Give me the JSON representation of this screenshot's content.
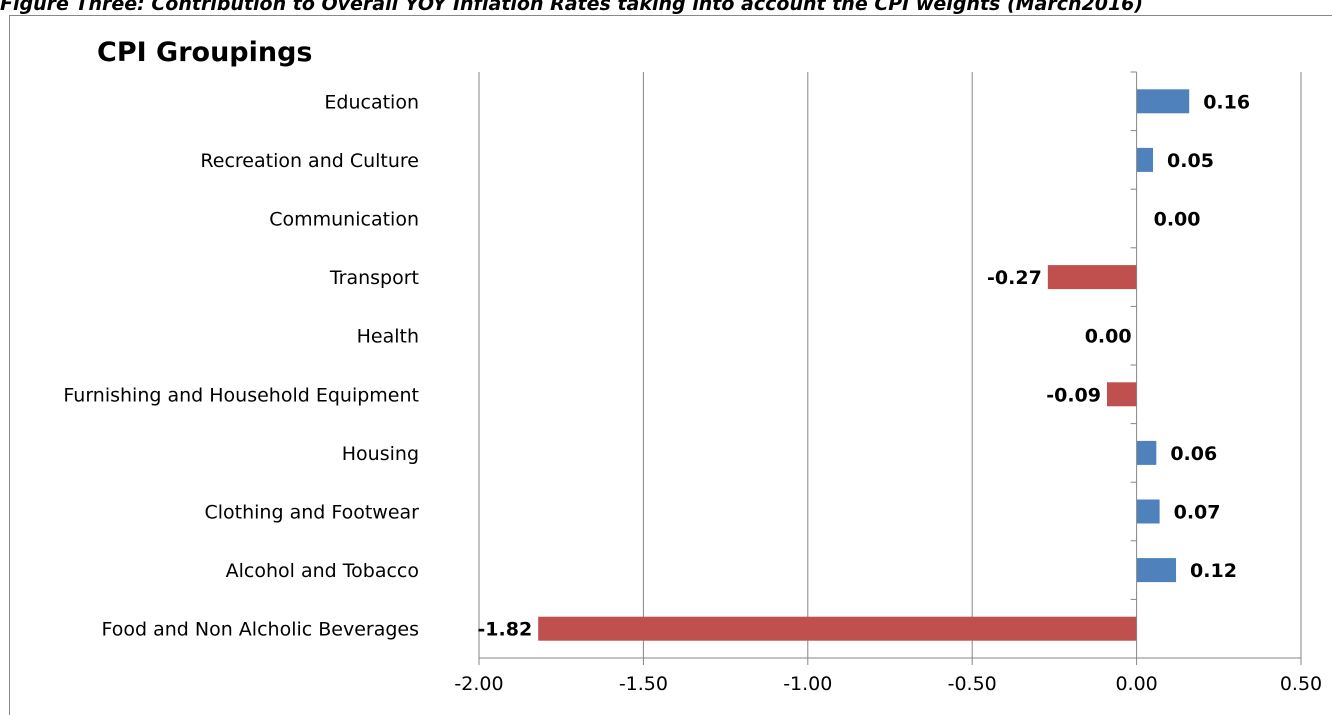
{
  "figure_caption": "Figure Three: Contribution to Overall YOY Inflation Rates taking into account the CPI weights (March2016)",
  "chart_data": {
    "type": "bar",
    "orientation": "horizontal",
    "title": "CPI Groupings",
    "categories": [
      "Education",
      "Recreation and Culture",
      "Communication",
      "Transport",
      "Health",
      "Furnishing and Household Equipment",
      "Housing",
      "Clothing and Footwear",
      "Alcohol and Tobacco",
      "Food and Non Alcholic Beverages"
    ],
    "values": [
      0.16,
      0.05,
      0.0,
      -0.27,
      0.0,
      -0.09,
      0.06,
      0.07,
      0.12,
      -1.82
    ],
    "value_labels": [
      "0.16",
      "0.05",
      "0.00",
      "-0.27",
      "0.00",
      "-0.09",
      "0.06",
      "0.07",
      "0.12",
      "-1.82"
    ],
    "xlim": [
      -2.0,
      0.5
    ],
    "xticks": [
      -2.0,
      -1.5,
      -1.0,
      -0.5,
      0.0,
      0.5
    ],
    "xtick_labels": [
      "-2.00",
      "-1.50",
      "-1.00",
      "-0.50",
      "0.00",
      "0.50"
    ],
    "xlabel": "",
    "ylabel": "",
    "grid": "vertical",
    "legend": "none",
    "colors": {
      "positive": "#4F81BD",
      "negative": "#C0504D",
      "gridline": "#868686",
      "text": "#000000"
    }
  }
}
